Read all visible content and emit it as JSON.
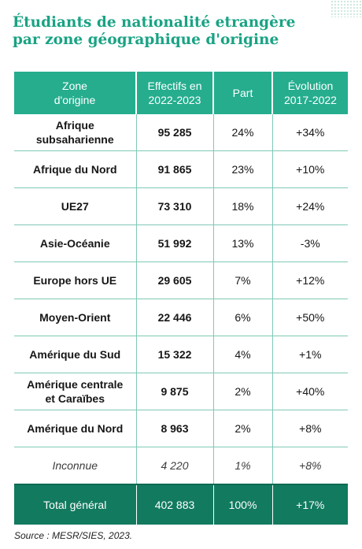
{
  "title": {
    "line1": "Étudiants de nationalité etrangère",
    "line2": "par zone géographique d'origine"
  },
  "table": {
    "headers": [
      [
        "Zone",
        "d'origine"
      ],
      [
        "Effectifs en",
        "2022-2023"
      ],
      [
        "Part"
      ],
      [
        "Évolution",
        "2017-2022"
      ]
    ],
    "rows": [
      {
        "zone": [
          "Afrique",
          "subsaharienne"
        ],
        "effectifs": "95 285",
        "part": "24%",
        "evolution": "+34%"
      },
      {
        "zone": [
          "Afrique du Nord"
        ],
        "effectifs": "91 865",
        "part": "23%",
        "evolution": "+10%"
      },
      {
        "zone": [
          "UE27"
        ],
        "effectifs": "73 310",
        "part": "18%",
        "evolution": "+24%"
      },
      {
        "zone": [
          "Asie-Océanie"
        ],
        "effectifs": "51 992",
        "part": "13%",
        "evolution": "-3%"
      },
      {
        "zone": [
          "Europe hors UE"
        ],
        "effectifs": "29 605",
        "part": "7%",
        "evolution": "+12%"
      },
      {
        "zone": [
          "Moyen-Orient"
        ],
        "effectifs": "22 446",
        "part": "6%",
        "evolution": "+50%"
      },
      {
        "zone": [
          "Amérique du Sud"
        ],
        "effectifs": "15 322",
        "part": "4%",
        "evolution": "+1%"
      },
      {
        "zone": [
          "Amérique centrale",
          "et Caraïbes"
        ],
        "effectifs": "9 875",
        "part": "2%",
        "evolution": "+40%"
      },
      {
        "zone": [
          "Amérique du Nord"
        ],
        "effectifs": "8 963",
        "part": "2%",
        "evolution": "+8%"
      },
      {
        "zone": [
          "Inconnue"
        ],
        "effectifs": "4 220",
        "part": "1%",
        "evolution": "+8%"
      }
    ],
    "total": {
      "zone": "Total  général",
      "effectifs": "402 883",
      "part": "100%",
      "evolution": "+17%"
    }
  },
  "source": "Source : MESR/SIES, 2023.",
  "colors": {
    "title": "#1aa384",
    "header_bg": "#25ad8e",
    "total_bg": "#127a5f",
    "grid_line": "#7fc9b6"
  }
}
